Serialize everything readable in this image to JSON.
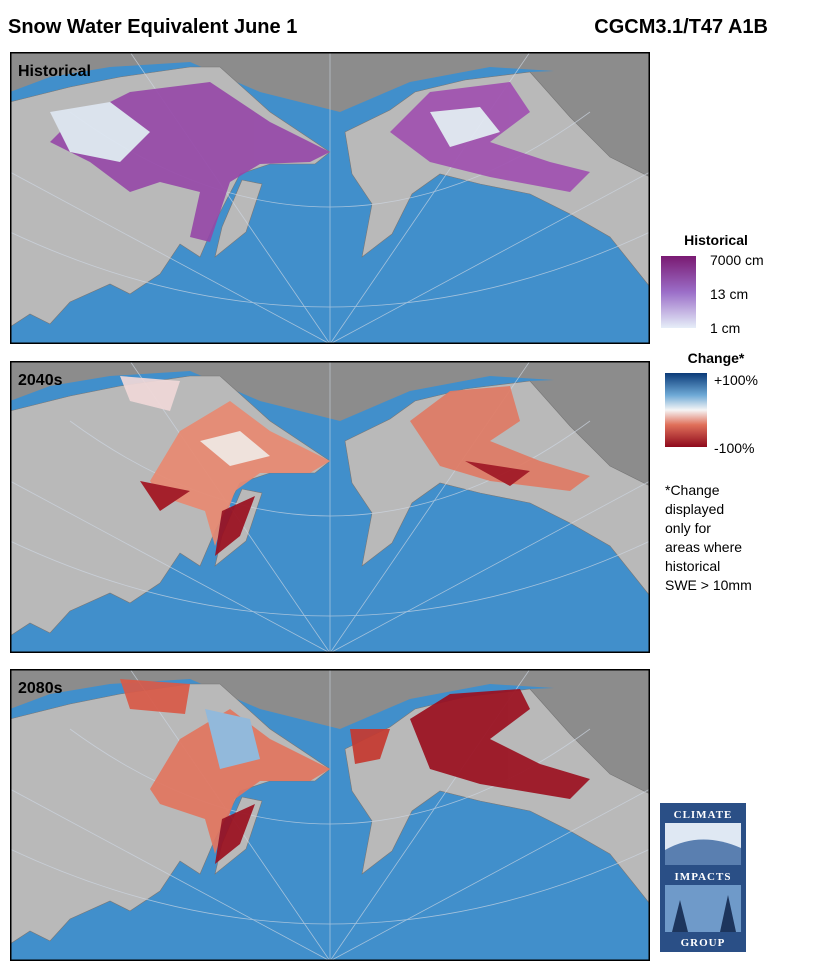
{
  "header": {
    "title": "Snow Water Equivalent June 1",
    "model": "CGCM3.1/T47 A1B"
  },
  "panels": [
    {
      "label": "Historical"
    },
    {
      "label": "2040s"
    },
    {
      "label": "2080s"
    }
  ],
  "legends": [
    {
      "title": "Historical",
      "labels": [
        "7000 cm",
        "13 cm",
        "1 cm"
      ]
    },
    {
      "title": "Change*",
      "labels": [
        "+100%",
        "-100%"
      ]
    }
  ],
  "note": {
    "lines": [
      "*Change",
      "displayed",
      "only for",
      "areas where",
      "historical",
      "SWE > 10mm"
    ]
  },
  "logo": {
    "words": [
      "CLIMATE",
      "IMPACTS",
      "GROUP"
    ]
  }
}
